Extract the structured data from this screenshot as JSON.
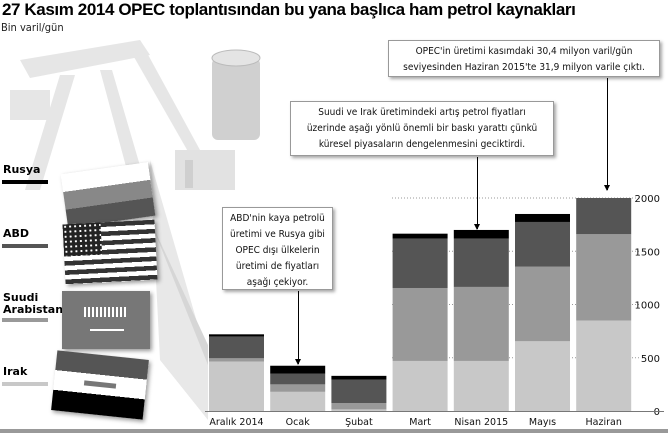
{
  "title": "27 Kasım 2014 OPEC toplantısından bu yana başlıca ham petrol kaynakları",
  "subtitle": "Bin varil/gün",
  "annotations": [
    "OPEC'in üretimi kasımdaki 30,4 milyon varil/gün seviyesinden Haziran 2015'te 31,9 milyon varile çıktı.",
    "Suudi ve Irak üretimindeki artış petrol fiyatları üzerinde aşağı yönlü önemli bir baskı yarattı çünkü küresel piyasaların dengelenmesini geciktirdi.",
    "ABD'nin kaya petrolü üretimi ve Rusya gibi OPEC dışı ülkelerin üretimi de fiyatları aşağı çekiyor."
  ],
  "legend": [
    {
      "label": "Rusya",
      "color": "#000000",
      "flag": "russia-flag"
    },
    {
      "label": "ABD",
      "color": "#555555",
      "flag": "usa-flag"
    },
    {
      "label": "Suudi Arabistan",
      "color": "#999999",
      "flag": "saudi-flag"
    },
    {
      "label": "Irak",
      "color": "#c8c8c8",
      "flag": "iraq-flag"
    }
  ],
  "chart_data": {
    "type": "bar",
    "stacked": true,
    "title": "27 Kasım 2014 OPEC toplantısından bu yana başlıca ham petrol kaynakları",
    "ylabel": "Bin varil/gün",
    "categories": [
      "Aralık 2014",
      "Ocak",
      "Şubat",
      "Mart",
      "Nisan 2015",
      "Mayıs",
      "Haziran"
    ],
    "series": [
      {
        "name": "Irak",
        "color": "#c8c8c8",
        "values": [
          465,
          180,
          15,
          470,
          470,
          655,
          850
        ]
      },
      {
        "name": "Suudi Arabistan",
        "color": "#999999",
        "values": [
          30,
          70,
          60,
          685,
          695,
          700,
          810
        ]
      },
      {
        "name": "ABD",
        "color": "#555555",
        "values": [
          205,
          100,
          220,
          465,
          455,
          420,
          340
        ]
      },
      {
        "name": "Rusya",
        "color": "#000000",
        "values": [
          20,
          75,
          35,
          45,
          80,
          75,
          0
        ]
      }
    ],
    "ylim": [
      0,
      2000
    ],
    "yticks": [
      0,
      500,
      1000,
      1500,
      2000
    ],
    "grid": "dotted horizontal",
    "yaxis_position": "right"
  }
}
